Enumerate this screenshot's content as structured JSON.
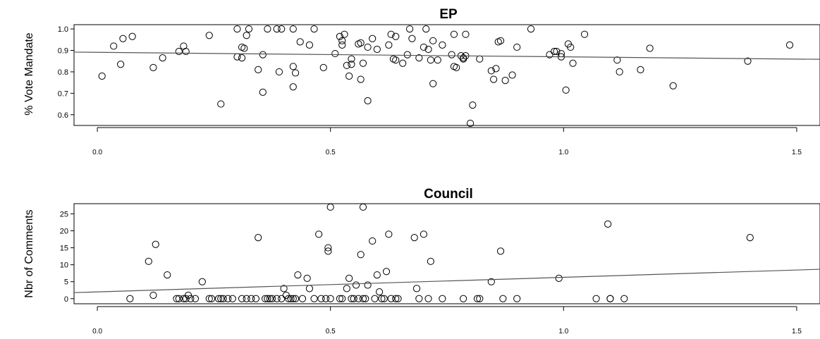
{
  "chart_data": [
    {
      "type": "scatter",
      "title": "EP",
      "xlabel": "",
      "ylabel": "% Vote Mandate",
      "xlim": [
        -0.05,
        1.55
      ],
      "ylim": [
        0.55,
        1.02
      ],
      "xticks": [
        "0.0",
        "0.5",
        "1.0",
        "1.5"
      ],
      "yticks": [
        "0.6",
        "0.7",
        "0.8",
        "0.9",
        "1.0"
      ],
      "grid": false,
      "regression_line": {
        "intercept": 0.891,
        "slope": -0.021
      },
      "points": [
        [
          0.01,
          0.78
        ],
        [
          0.035,
          0.92
        ],
        [
          0.05,
          0.835
        ],
        [
          0.055,
          0.955
        ],
        [
          0.075,
          0.965
        ],
        [
          0.12,
          0.82
        ],
        [
          0.14,
          0.865
        ],
        [
          0.175,
          0.895
        ],
        [
          0.185,
          0.92
        ],
        [
          0.19,
          0.895
        ],
        [
          0.24,
          0.97
        ],
        [
          0.265,
          0.65
        ],
        [
          0.3,
          0.87
        ],
        [
          0.3,
          1.0
        ],
        [
          0.31,
          0.915
        ],
        [
          0.31,
          0.865
        ],
        [
          0.315,
          0.91
        ],
        [
          0.32,
          0.97
        ],
        [
          0.325,
          1.0
        ],
        [
          0.345,
          0.81
        ],
        [
          0.355,
          0.88
        ],
        [
          0.355,
          0.705
        ],
        [
          0.365,
          1.0
        ],
        [
          0.385,
          1.0
        ],
        [
          0.39,
          0.8
        ],
        [
          0.395,
          1.0
        ],
        [
          0.42,
          0.825
        ],
        [
          0.42,
          1.0
        ],
        [
          0.42,
          0.73
        ],
        [
          0.425,
          0.795
        ],
        [
          0.435,
          0.94
        ],
        [
          0.455,
          0.925
        ],
        [
          0.465,
          1.0
        ],
        [
          0.485,
          0.82
        ],
        [
          0.51,
          0.885
        ],
        [
          0.52,
          0.965
        ],
        [
          0.525,
          0.945
        ],
        [
          0.525,
          0.925
        ],
        [
          0.53,
          0.975
        ],
        [
          0.535,
          0.83
        ],
        [
          0.54,
          0.78
        ],
        [
          0.545,
          0.835
        ],
        [
          0.545,
          0.86
        ],
        [
          0.56,
          0.93
        ],
        [
          0.565,
          0.935
        ],
        [
          0.565,
          0.765
        ],
        [
          0.57,
          0.84
        ],
        [
          0.58,
          0.915
        ],
        [
          0.58,
          0.665
        ],
        [
          0.59,
          0.955
        ],
        [
          0.6,
          0.905
        ],
        [
          0.625,
          0.925
        ],
        [
          0.63,
          0.975
        ],
        [
          0.635,
          0.86
        ],
        [
          0.64,
          0.965
        ],
        [
          0.64,
          0.855
        ],
        [
          0.655,
          0.84
        ],
        [
          0.665,
          0.88
        ],
        [
          0.67,
          1.0
        ],
        [
          0.675,
          0.955
        ],
        [
          0.69,
          0.865
        ],
        [
          0.7,
          0.915
        ],
        [
          0.705,
          1.0
        ],
        [
          0.71,
          0.905
        ],
        [
          0.715,
          0.855
        ],
        [
          0.72,
          0.945
        ],
        [
          0.72,
          0.745
        ],
        [
          0.73,
          0.855
        ],
        [
          0.74,
          0.925
        ],
        [
          0.76,
          0.88
        ],
        [
          0.765,
          0.825
        ],
        [
          0.765,
          0.975
        ],
        [
          0.77,
          0.82
        ],
        [
          0.78,
          0.875
        ],
        [
          0.785,
          0.86
        ],
        [
          0.785,
          0.865
        ],
        [
          0.79,
          0.975
        ],
        [
          0.79,
          0.875
        ],
        [
          0.8,
          0.56
        ],
        [
          0.805,
          0.645
        ],
        [
          0.82,
          0.86
        ],
        [
          0.845,
          0.805
        ],
        [
          0.85,
          0.765
        ],
        [
          0.855,
          0.815
        ],
        [
          0.86,
          0.94
        ],
        [
          0.865,
          0.945
        ],
        [
          0.875,
          0.76
        ],
        [
          0.89,
          0.785
        ],
        [
          0.9,
          0.915
        ],
        [
          0.93,
          1.0
        ],
        [
          0.97,
          0.88
        ],
        [
          0.98,
          0.895
        ],
        [
          0.985,
          0.895
        ],
        [
          0.995,
          0.885
        ],
        [
          0.995,
          0.87
        ],
        [
          1.005,
          0.715
        ],
        [
          1.01,
          0.93
        ],
        [
          1.015,
          0.915
        ],
        [
          1.02,
          0.84
        ],
        [
          1.045,
          0.975
        ],
        [
          1.115,
          0.855
        ],
        [
          1.12,
          0.8
        ],
        [
          1.165,
          0.81
        ],
        [
          1.185,
          0.91
        ],
        [
          1.235,
          0.735
        ],
        [
          1.395,
          0.85
        ],
        [
          1.485,
          0.925
        ]
      ]
    },
    {
      "type": "scatter",
      "title": "Council",
      "xlabel": "",
      "ylabel": "Nbr of Comments",
      "xlim": [
        -0.05,
        1.55
      ],
      "ylim": [
        -1.5,
        28
      ],
      "xticks": [
        "0.0",
        "0.5",
        "1.0",
        "1.5"
      ],
      "yticks": [
        "0",
        "5",
        "10",
        "15",
        "20",
        "25"
      ],
      "grid": false,
      "regression_line": {
        "intercept": 2.0,
        "slope": 4.3
      },
      "points": [
        [
          0.07,
          0
        ],
        [
          0.11,
          11
        ],
        [
          0.12,
          1
        ],
        [
          0.125,
          16
        ],
        [
          0.15,
          7
        ],
        [
          0.17,
          0
        ],
        [
          0.175,
          0
        ],
        [
          0.185,
          0
        ],
        [
          0.19,
          0
        ],
        [
          0.195,
          1
        ],
        [
          0.2,
          0
        ],
        [
          0.21,
          0
        ],
        [
          0.225,
          5
        ],
        [
          0.24,
          0
        ],
        [
          0.245,
          0
        ],
        [
          0.26,
          0
        ],
        [
          0.265,
          0
        ],
        [
          0.27,
          0
        ],
        [
          0.28,
          0
        ],
        [
          0.29,
          0
        ],
        [
          0.31,
          0
        ],
        [
          0.32,
          0
        ],
        [
          0.33,
          0
        ],
        [
          0.34,
          0
        ],
        [
          0.345,
          18
        ],
        [
          0.36,
          0
        ],
        [
          0.365,
          0
        ],
        [
          0.37,
          0
        ],
        [
          0.375,
          0
        ],
        [
          0.385,
          0
        ],
        [
          0.395,
          0
        ],
        [
          0.4,
          3
        ],
        [
          0.405,
          1
        ],
        [
          0.41,
          0
        ],
        [
          0.415,
          0
        ],
        [
          0.42,
          0
        ],
        [
          0.425,
          0
        ],
        [
          0.43,
          7
        ],
        [
          0.44,
          0
        ],
        [
          0.45,
          6
        ],
        [
          0.455,
          3
        ],
        [
          0.465,
          0
        ],
        [
          0.475,
          19
        ],
        [
          0.48,
          0
        ],
        [
          0.49,
          0
        ],
        [
          0.495,
          15
        ],
        [
          0.495,
          14
        ],
        [
          0.5,
          27
        ],
        [
          0.5,
          0
        ],
        [
          0.52,
          0
        ],
        [
          0.525,
          0
        ],
        [
          0.535,
          3
        ],
        [
          0.54,
          6
        ],
        [
          0.545,
          0
        ],
        [
          0.55,
          0
        ],
        [
          0.555,
          4
        ],
        [
          0.56,
          0
        ],
        [
          0.565,
          13
        ],
        [
          0.57,
          0
        ],
        [
          0.57,
          27
        ],
        [
          0.575,
          0
        ],
        [
          0.58,
          4
        ],
        [
          0.59,
          17
        ],
        [
          0.595,
          0
        ],
        [
          0.6,
          7
        ],
        [
          0.605,
          2
        ],
        [
          0.61,
          0
        ],
        [
          0.615,
          0
        ],
        [
          0.62,
          8
        ],
        [
          0.625,
          19
        ],
        [
          0.63,
          0
        ],
        [
          0.64,
          0
        ],
        [
          0.645,
          0
        ],
        [
          0.68,
          18
        ],
        [
          0.685,
          3
        ],
        [
          0.69,
          0
        ],
        [
          0.7,
          19
        ],
        [
          0.71,
          0
        ],
        [
          0.715,
          11
        ],
        [
          0.74,
          0
        ],
        [
          0.785,
          0
        ],
        [
          0.815,
          0
        ],
        [
          0.82,
          0
        ],
        [
          0.845,
          5
        ],
        [
          0.865,
          14
        ],
        [
          0.87,
          0
        ],
        [
          0.9,
          0
        ],
        [
          0.99,
          6
        ],
        [
          1.07,
          0
        ],
        [
          1.095,
          22
        ],
        [
          1.1,
          0
        ],
        [
          1.1,
          0
        ],
        [
          1.13,
          0
        ],
        [
          1.4,
          18
        ]
      ]
    }
  ]
}
